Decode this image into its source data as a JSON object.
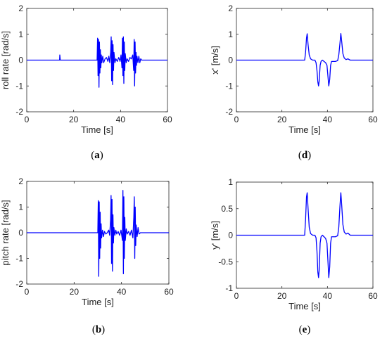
{
  "chart_data": [
    {
      "id": "a",
      "type": "line",
      "caption_letter": "a",
      "xlabel": "Time [s]",
      "ylabel": "roll rate [rad/s]",
      "xlim": [
        0,
        60
      ],
      "ylim": [
        -2,
        2
      ],
      "xticks": [
        0,
        20,
        40,
        60
      ],
      "yticks": [
        -2,
        -1,
        0,
        1,
        2
      ],
      "grid": false,
      "line_color": "#0000ff",
      "series": [
        {
          "x": [
            0,
            14.0,
            14.1,
            14.2,
            14.3,
            30.0,
            30.2,
            30.4,
            30.6,
            30.8,
            31.0,
            31.2,
            31.4,
            31.6,
            31.8,
            32.0,
            32.4,
            32.8,
            33.4,
            34.0,
            34.6,
            35.0,
            35.4,
            35.8,
            36.0,
            36.2,
            36.4,
            36.6,
            36.8,
            37.0,
            37.2,
            37.6,
            38.0,
            38.6,
            39.2,
            39.8,
            40.2,
            40.6,
            40.8,
            41.0,
            41.2,
            41.4,
            41.6,
            41.8,
            42.0,
            42.4,
            42.8,
            43.4,
            44.0,
            44.6,
            45.2,
            45.6,
            45.8,
            46.0,
            46.2,
            46.4,
            46.6,
            46.8,
            47.0,
            47.4,
            47.8,
            48.2,
            48.6,
            49.0,
            60
          ],
          "y": [
            0,
            0,
            0.2,
            0.1,
            0,
            0,
            0.85,
            -0.6,
            0.8,
            -1.05,
            0.7,
            -0.5,
            0.4,
            -0.3,
            0.2,
            -0.1,
            0.15,
            -0.1,
            0.05,
            0.1,
            -0.05,
            0.15,
            -0.1,
            0.3,
            0.9,
            -0.8,
            0.75,
            -0.95,
            0.6,
            -0.4,
            0.3,
            -0.1,
            0.05,
            -0.05,
            0.1,
            -0.05,
            0.2,
            -0.3,
            0.85,
            -0.6,
            0.9,
            -0.9,
            0.7,
            -0.4,
            0.25,
            -0.1,
            0.05,
            -0.05,
            0.1,
            0.05,
            0.2,
            -0.4,
            0.8,
            -1.0,
            0.7,
            -0.5,
            0.3,
            -0.2,
            0.15,
            -0.1,
            0.15,
            -0.1,
            0.05,
            0,
            0
          ]
        }
      ]
    },
    {
      "id": "d",
      "type": "line",
      "caption_letter": "d",
      "xlabel": "Time [s]",
      "ylabel": "x' [m/s]",
      "xlim": [
        0,
        60
      ],
      "ylim": [
        -2,
        2
      ],
      "xticks": [
        0,
        20,
        40,
        60
      ],
      "yticks": [
        -2,
        -1,
        0,
        1,
        2
      ],
      "grid": false,
      "line_color": "#0000ff",
      "series": [
        {
          "x": [
            0,
            30.0,
            30.4,
            30.8,
            31.1,
            31.5,
            32.0,
            32.6,
            33.5,
            34.5,
            35.0,
            35.4,
            35.8,
            36.1,
            36.4,
            36.8,
            37.2,
            37.8,
            38.5,
            39.2,
            39.8,
            40.3,
            40.6,
            41.0,
            41.4,
            41.8,
            42.5,
            43.5,
            44.5,
            45.0,
            45.5,
            45.9,
            46.3,
            46.8,
            47.4,
            48.2,
            49.0,
            50.0,
            60
          ],
          "y": [
            0,
            0,
            0.3,
            0.85,
            1.02,
            0.6,
            0.2,
            0.05,
            0,
            0,
            -0.1,
            -0.4,
            -0.85,
            -1.0,
            -0.8,
            -0.2,
            -0.05,
            0.0,
            -0.05,
            -0.1,
            -0.2,
            -0.7,
            -1.0,
            -0.75,
            -0.2,
            -0.05,
            -0.05,
            -0.05,
            -0.02,
            0.2,
            0.65,
            1.03,
            0.7,
            0.25,
            0.08,
            0.02,
            0.05,
            0,
            0
          ]
        }
      ]
    },
    {
      "id": "b",
      "type": "line",
      "caption_letter": "b",
      "xlabel": "Time [s]",
      "ylabel": "pitch rate [rad/s]",
      "xlim": [
        0,
        60
      ],
      "ylim": [
        -2,
        2
      ],
      "xticks": [
        0,
        20,
        40,
        60
      ],
      "yticks": [
        -2,
        -1,
        0,
        1,
        2
      ],
      "grid": false,
      "line_color": "#0000ff",
      "series": [
        {
          "x": [
            0,
            30.0,
            30.2,
            30.4,
            30.6,
            30.8,
            31.0,
            31.2,
            31.4,
            31.6,
            32.0,
            32.4,
            32.8,
            33.4,
            34.0,
            34.6,
            35.0,
            35.4,
            35.6,
            35.8,
            36.0,
            36.2,
            36.4,
            36.6,
            36.8,
            37.2,
            37.6,
            38.0,
            38.6,
            39.2,
            39.8,
            40.4,
            40.6,
            40.8,
            41.0,
            41.2,
            41.4,
            41.6,
            42.0,
            42.4,
            43.0,
            43.6,
            44.2,
            44.8,
            45.2,
            45.4,
            45.6,
            45.8,
            46.0,
            46.2,
            46.6,
            47.0,
            47.4,
            48.0,
            60
          ],
          "y": [
            0,
            0,
            1.25,
            -1.7,
            1.2,
            -1.0,
            0.8,
            -0.6,
            0.35,
            -0.2,
            0.1,
            -0.15,
            0.05,
            -0.05,
            0.0,
            0.1,
            -0.1,
            0.5,
            1.45,
            -1.2,
            1.3,
            -1.5,
            0.7,
            -0.4,
            0.2,
            -0.1,
            0.1,
            -0.05,
            0.05,
            -0.1,
            0.1,
            -0.3,
            1.65,
            -1.6,
            1.4,
            -1.0,
            0.6,
            -0.3,
            0.15,
            -0.05,
            0.05,
            -0.1,
            0.1,
            -0.2,
            0.6,
            1.4,
            -1.0,
            1.0,
            -0.5,
            0.3,
            -0.15,
            0.2,
            -0.05,
            0,
            0
          ]
        }
      ]
    },
    {
      "id": "e",
      "type": "line",
      "caption_letter": "e",
      "xlabel": "Time [s]",
      "ylabel": "y' [m/s]",
      "xlim": [
        0,
        60
      ],
      "ylim": [
        -1,
        1
      ],
      "xticks": [
        0,
        20,
        40,
        60
      ],
      "yticks": [
        -1,
        -0.5,
        0,
        0.5,
        1
      ],
      "grid": false,
      "line_color": "#0000ff",
      "series": [
        {
          "x": [
            0,
            30.0,
            30.4,
            30.8,
            31.1,
            31.5,
            32.0,
            32.6,
            33.5,
            34.5,
            35.0,
            35.4,
            35.8,
            36.1,
            36.4,
            36.8,
            37.2,
            37.8,
            38.5,
            39.2,
            39.8,
            40.3,
            40.6,
            41.0,
            41.4,
            41.8,
            42.5,
            43.5,
            44.5,
            45.0,
            45.5,
            45.9,
            46.3,
            46.8,
            47.4,
            48.2,
            49.0,
            50.0,
            60
          ],
          "y": [
            0,
            0,
            0.3,
            0.72,
            0.8,
            0.5,
            0.15,
            0.03,
            0,
            0,
            -0.05,
            -0.3,
            -0.7,
            -0.8,
            -0.65,
            -0.15,
            -0.03,
            0.0,
            -0.03,
            -0.06,
            -0.15,
            -0.55,
            -0.8,
            -0.6,
            -0.15,
            -0.03,
            -0.03,
            -0.03,
            -0.01,
            0.15,
            0.55,
            0.8,
            0.55,
            0.2,
            0.06,
            0.02,
            0.04,
            0,
            0
          ]
        }
      ]
    }
  ]
}
